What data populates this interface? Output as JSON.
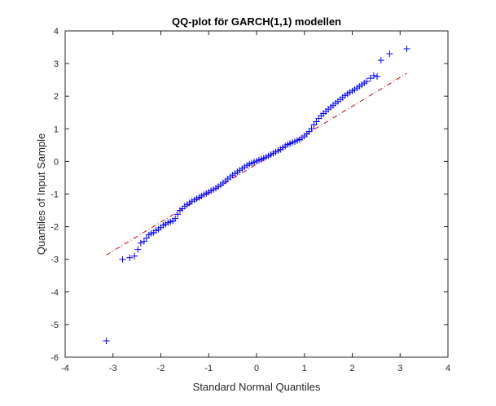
{
  "chart_data": {
    "type": "scatter",
    "title": "QQ-plot för GARCH(1,1) modellen",
    "xlabel": "Standard Normal Quantiles",
    "ylabel": "Quantiles of Input Sample",
    "xlim": [
      -4,
      4
    ],
    "ylim": [
      -6,
      4
    ],
    "xticks": [
      "-4",
      "-3",
      "-2",
      "-1",
      "0",
      "1",
      "2",
      "3",
      "4"
    ],
    "yticks": [
      "-6",
      "-5",
      "-4",
      "-3",
      "-2",
      "-1",
      "0",
      "1",
      "2",
      "3",
      "4"
    ],
    "grid": false,
    "marker": "+",
    "colors": {
      "points": "#0000ff",
      "reference_line": "#cc0000",
      "axes": "#262626"
    },
    "sample_points": {
      "x": [
        -3.14,
        -2.8,
        -2.65,
        -2.55,
        -2.48,
        -2.42,
        -2.35,
        -2.3,
        -2.25,
        -2.2,
        -2.15,
        -2.1,
        -2.05,
        -2.0,
        -1.95,
        -1.9,
        -1.85,
        -1.8,
        -1.75,
        -1.7,
        -1.65,
        -1.6,
        -1.55,
        -1.5,
        -1.45,
        -1.4,
        -1.35,
        -1.3,
        -1.25,
        -1.2,
        -1.15,
        -1.1,
        -1.05,
        -1.0,
        -0.95,
        -0.9,
        -0.85,
        -0.8,
        -0.75,
        -0.7,
        -0.65,
        -0.6,
        -0.55,
        -0.5,
        -0.45,
        -0.4,
        -0.35,
        -0.3,
        -0.25,
        -0.2,
        -0.15,
        -0.1,
        -0.05,
        0.0,
        0.05,
        0.1,
        0.15,
        0.2,
        0.25,
        0.3,
        0.35,
        0.4,
        0.45,
        0.5,
        0.55,
        0.6,
        0.65,
        0.7,
        0.75,
        0.8,
        0.85,
        0.9,
        0.95,
        1.0,
        1.05,
        1.1,
        1.15,
        1.2,
        1.25,
        1.3,
        1.35,
        1.4,
        1.45,
        1.5,
        1.55,
        1.6,
        1.65,
        1.7,
        1.75,
        1.8,
        1.85,
        1.9,
        1.95,
        2.0,
        2.05,
        2.1,
        2.15,
        2.2,
        2.25,
        2.3,
        2.38,
        2.45,
        2.52,
        2.6,
        2.78,
        3.14
      ],
      "y": [
        -5.5,
        -3.0,
        -2.95,
        -2.9,
        -2.7,
        -2.5,
        -2.45,
        -2.35,
        -2.25,
        -2.2,
        -2.18,
        -2.12,
        -2.08,
        -2.02,
        -1.96,
        -1.92,
        -1.88,
        -1.85,
        -1.82,
        -1.75,
        -1.62,
        -1.5,
        -1.45,
        -1.37,
        -1.32,
        -1.27,
        -1.22,
        -1.18,
        -1.14,
        -1.1,
        -1.06,
        -1.02,
        -0.98,
        -0.94,
        -0.9,
        -0.86,
        -0.82,
        -0.77,
        -0.72,
        -0.66,
        -0.6,
        -0.54,
        -0.48,
        -0.42,
        -0.37,
        -0.32,
        -0.27,
        -0.22,
        -0.17,
        -0.12,
        -0.08,
        -0.05,
        -0.02,
        0.01,
        0.04,
        0.07,
        0.1,
        0.13,
        0.17,
        0.21,
        0.25,
        0.29,
        0.33,
        0.37,
        0.42,
        0.47,
        0.52,
        0.55,
        0.58,
        0.61,
        0.64,
        0.67,
        0.72,
        0.78,
        0.84,
        0.92,
        1.0,
        1.12,
        1.22,
        1.32,
        1.4,
        1.47,
        1.53,
        1.6,
        1.66,
        1.72,
        1.78,
        1.84,
        1.9,
        1.96,
        2.02,
        2.07,
        2.12,
        2.16,
        2.2,
        2.25,
        2.3,
        2.35,
        2.4,
        2.45,
        2.55,
        2.63,
        2.6,
        3.1,
        3.3,
        3.45
      ]
    },
    "reference_line": {
      "style": "dash-dot",
      "x": [
        -3.14,
        3.14
      ],
      "y": [
        -2.87,
        2.7
      ]
    }
  }
}
